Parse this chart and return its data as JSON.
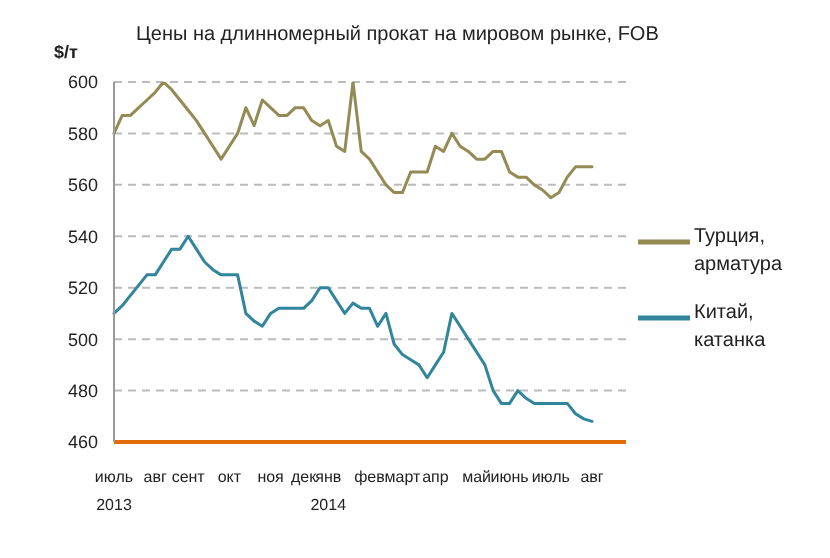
{
  "chart_data": {
    "type": "line",
    "title": "Цены на длинномерный прокат на мировом рынке, FOB",
    "ylabel": "$/т",
    "categories": [
      "июль\n2013",
      null,
      null,
      null,
      null,
      "авг",
      null,
      null,
      null,
      "сент",
      null,
      null,
      null,
      null,
      "окт",
      null,
      null,
      null,
      null,
      "ноя",
      null,
      null,
      null,
      "дек",
      null,
      null,
      "янв\n2014",
      null,
      null,
      null,
      null,
      "фев",
      null,
      null,
      null,
      "март",
      null,
      null,
      null,
      "апр",
      null,
      null,
      null,
      null,
      "май",
      null,
      null,
      null,
      "июнь",
      null,
      null,
      null,
      null,
      "июль",
      null,
      null,
      null,
      null,
      "авг"
    ],
    "series": [
      {
        "name": "Турция, арматура",
        "color": "#948a54",
        "values": [
          580,
          587,
          587,
          590,
          593,
          596,
          600,
          597,
          593,
          589,
          585,
          580,
          575,
          570,
          575,
          580,
          590,
          583,
          593,
          590,
          587,
          587,
          590,
          590,
          585,
          583,
          585,
          575,
          573,
          600,
          573,
          570,
          565,
          560,
          557,
          557,
          565,
          565,
          565,
          575,
          573,
          580,
          575,
          573,
          570,
          570,
          573,
          573,
          565,
          563,
          563,
          560,
          558,
          555,
          557,
          563,
          567,
          567,
          567
        ]
      },
      {
        "name": "Китай, катанка",
        "color": "#31859c",
        "values": [
          510,
          513,
          517,
          521,
          525,
          525,
          530,
          535,
          535,
          540,
          535,
          530,
          527,
          525,
          525,
          525,
          510,
          507,
          505,
          510,
          512,
          512,
          512,
          512,
          515,
          520,
          520,
          515,
          510,
          514,
          512,
          512,
          505,
          510,
          498,
          494,
          492,
          490,
          485,
          490,
          495,
          510,
          505,
          500,
          495,
          490,
          480,
          475,
          475,
          480,
          477,
          475,
          475,
          475,
          475,
          475,
          471,
          469,
          468
        ]
      }
    ],
    "ylim": [
      460,
      600
    ],
    "yticks": [
      460,
      480,
      500,
      520,
      540,
      560,
      580,
      600
    ],
    "grid": "y",
    "legend": "right",
    "marker": "none",
    "line_style": "solid"
  }
}
